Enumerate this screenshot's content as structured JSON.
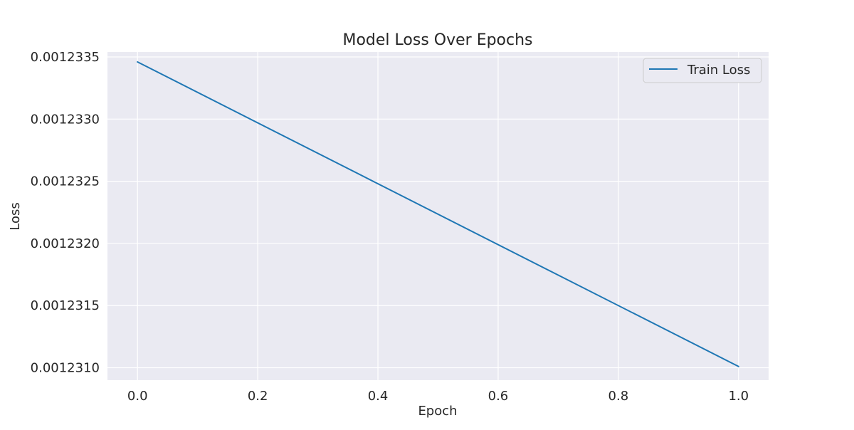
{
  "chart_data": {
    "type": "line",
    "title": "Model Loss Over Epochs",
    "xlabel": "Epoch",
    "ylabel": "Loss",
    "xlim": [
      -0.05,
      1.05
    ],
    "ylim": [
      0.0012309,
      0.00123354
    ],
    "x_ticks": [
      0.0,
      0.2,
      0.4,
      0.6,
      0.8,
      1.0
    ],
    "x_tick_labels": [
      "0.0",
      "0.2",
      "0.4",
      "0.6",
      "0.8",
      "1.0"
    ],
    "y_ticks": [
      0.001231,
      0.0012315,
      0.001232,
      0.0012325,
      0.001233,
      0.0012335
    ],
    "y_tick_labels": [
      "0.0012310",
      "0.0012315",
      "0.0012320",
      "0.0012325",
      "0.0012330",
      "0.0012335"
    ],
    "grid": true,
    "legend_position": "top-right",
    "background_color": "#eaeaf2",
    "grid_color": "#ffffff",
    "series": [
      {
        "name": "Train Loss",
        "color": "#1f77b4",
        "x": [
          0.0,
          1.0
        ],
        "y": [
          0.00123346,
          0.00123101
        ]
      }
    ]
  }
}
